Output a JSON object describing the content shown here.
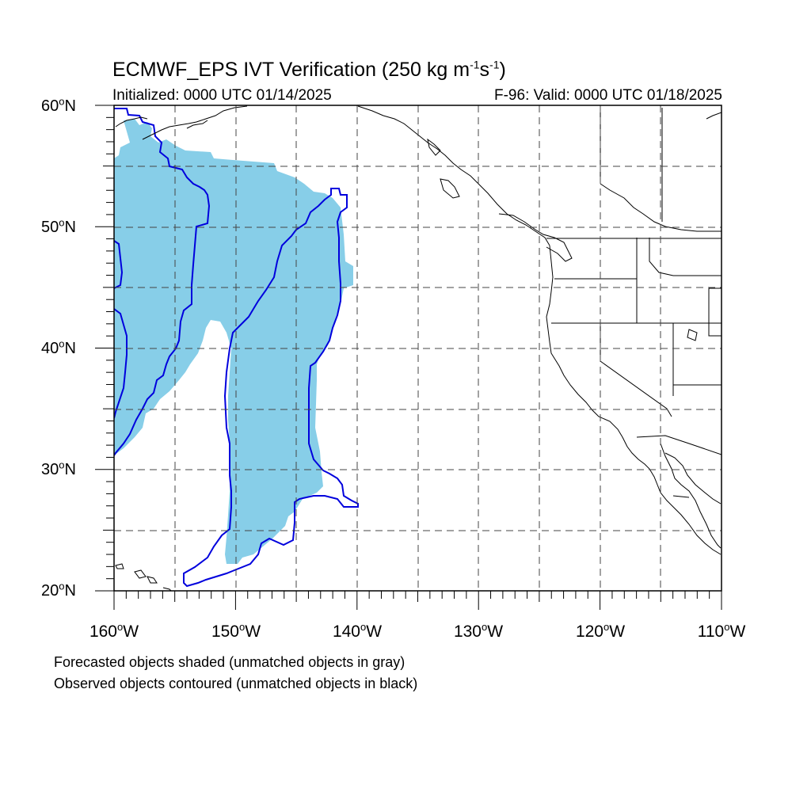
{
  "header": {
    "title_main": "ECMWF_EPS IVT Verification (250 kg m",
    "title_exp1": "-1",
    "title_mid": "s",
    "title_exp2": "-1",
    "title_end": ")",
    "initialized": "Initialized: 0000 UTC 01/14/2025",
    "valid": "F-96: Valid: 0000 UTC 01/18/2025"
  },
  "axes": {
    "lat_labels": [
      "60",
      "50",
      "40",
      "30",
      "20"
    ],
    "lat_suffix": "N",
    "lon_labels": [
      "160",
      "150",
      "140",
      "130",
      "120",
      "110"
    ],
    "lon_suffix": "W",
    "degree_symbol": "o"
  },
  "map": {
    "extent": {
      "lon_min": -160,
      "lon_max": -110,
      "lat_min": 20,
      "lat_max": 60
    },
    "grid_dashed": true,
    "forecast_fill_color": "#87CEE8",
    "observed_contour_color": "#0000DD",
    "coastline_color": "#000000"
  },
  "footnotes": {
    "line1": "Forecasted objects shaded (unmatched objects in gray)",
    "line2": "Observed objects contoured (unmatched objects in black)"
  }
}
